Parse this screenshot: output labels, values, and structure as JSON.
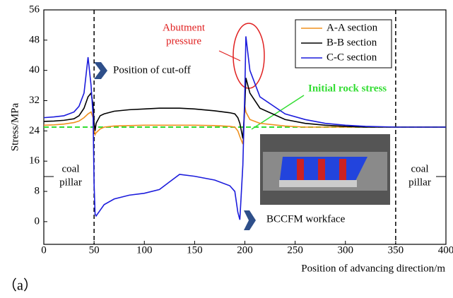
{
  "chart_data": {
    "type": "line",
    "x": [
      0,
      10,
      20,
      30,
      35,
      40,
      44,
      47,
      49,
      50,
      51,
      52,
      56,
      60,
      70,
      85,
      100,
      115,
      125,
      135,
      150,
      170,
      185,
      190,
      193,
      195,
      198,
      200,
      201,
      205,
      215,
      240,
      260,
      280,
      300,
      320,
      350,
      400
    ],
    "series": [
      {
        "name": "A-A section",
        "color": "#f0901e",
        "values": [
          25.5,
          25.6,
          25.8,
          26.2,
          26.6,
          27.5,
          28.5,
          29,
          27.5,
          24.5,
          23,
          23.5,
          24.5,
          25,
          25.3,
          25.4,
          25.5,
          25.5,
          25.5,
          25.5,
          25.5,
          25.4,
          25.2,
          25,
          24,
          22.5,
          20.5,
          30.5,
          29,
          27,
          26,
          25.3,
          25,
          25,
          25,
          25,
          25,
          25
        ]
      },
      {
        "name": "B-B section",
        "color": "#000000",
        "values": [
          26.5,
          26.6,
          26.8,
          27.2,
          28,
          30,
          33,
          34,
          31,
          26,
          24,
          26,
          28,
          28.5,
          29.2,
          29.6,
          29.8,
          30,
          30,
          30,
          29.8,
          29.3,
          28.8,
          28.5,
          27.5,
          26,
          22,
          31,
          38,
          34,
          30,
          27,
          26,
          25.5,
          25.2,
          25,
          25,
          25
        ]
      },
      {
        "name": "C-C section",
        "color": "#1c1cdc",
        "values": [
          27.5,
          27.7,
          28,
          29,
          30.5,
          34,
          43.5,
          36,
          28,
          10,
          2,
          1.5,
          3,
          4.5,
          6,
          7,
          7.5,
          8.5,
          10.5,
          12.5,
          12,
          11,
          9.5,
          8,
          2.5,
          0.5,
          15,
          35,
          49,
          40,
          33,
          28.5,
          27,
          26,
          25.5,
          25.2,
          25,
          25
        ]
      }
    ],
    "xlim": [
      0,
      400
    ],
    "xticks": [
      0,
      50,
      100,
      150,
      200,
      250,
      300,
      350,
      400
    ],
    "ylim": [
      -6,
      56
    ],
    "yticks": [
      0,
      8,
      16,
      24,
      32,
      40,
      48,
      56
    ],
    "xlabel": "Position of advancing direction/m",
    "ylabel": "Stress/MPa",
    "legend": "top-right",
    "reference_line": {
      "value": 25,
      "label": "Initial rock stress",
      "color": "#33dd33"
    },
    "vlines": [
      50,
      350
    ],
    "annotations": {
      "abutment": [
        "Abutment",
        "pressure"
      ],
      "cutoff": "Position of  cut-off",
      "workface": "BCCFM workface",
      "left_pillar": [
        "coal",
        "pillar"
      ],
      "right_pillar": [
        "coal",
        "pillar"
      ]
    },
    "caption": "（a）"
  }
}
